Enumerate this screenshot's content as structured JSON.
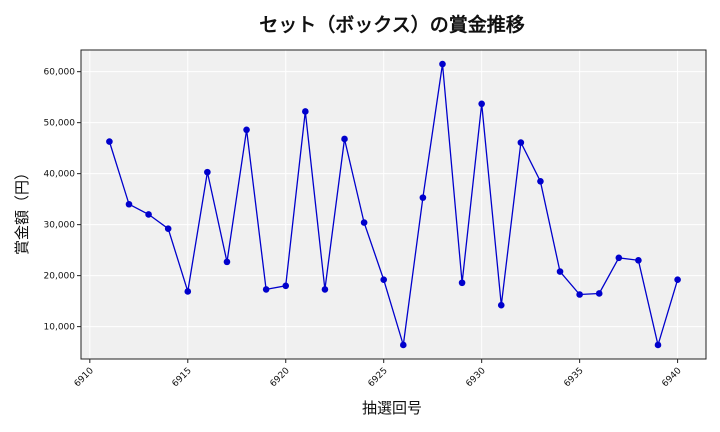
{
  "chart_data": {
    "type": "line",
    "title": "セット（ボックス）の賞金推移",
    "xlabel": "抽選回号",
    "ylabel": "賞金額（円）",
    "x": [
      6911,
      6912,
      6913,
      6914,
      6915,
      6916,
      6917,
      6918,
      6919,
      6920,
      6921,
      6922,
      6923,
      6924,
      6925,
      6926,
      6927,
      6928,
      6929,
      6930,
      6931,
      6932,
      6933,
      6934,
      6935,
      6936,
      6937,
      6938,
      6939,
      6940
    ],
    "series": [
      {
        "values": [
          46300,
          34000,
          32000,
          29200,
          16900,
          40300,
          22700,
          48600,
          17300,
          18000,
          52200,
          17300,
          46800,
          30400,
          19200,
          6400,
          35300,
          61500,
          18600,
          53700,
          14200,
          46100,
          38500,
          20800,
          16300,
          16500,
          23500,
          23000,
          6400,
          19200
        ],
        "color": "#0000cc"
      }
    ],
    "xticks": [
      6910,
      6915,
      6920,
      6925,
      6930,
      6935,
      6940
    ],
    "xtick_labels": [
      "6910",
      "6915",
      "6920",
      "6925",
      "6930",
      "6935",
      "6940"
    ],
    "yticks": [
      10000,
      20000,
      30000,
      40000,
      50000,
      60000
    ],
    "ytick_labels": [
      "10,000",
      "20,000",
      "30,000",
      "40,000",
      "50,000",
      "60,000"
    ],
    "xlim": [
      6909.55,
      6941.45
    ],
    "ylim": [
      3650,
      64250
    ],
    "grid": true,
    "plot_background": "#f0f0f0"
  }
}
